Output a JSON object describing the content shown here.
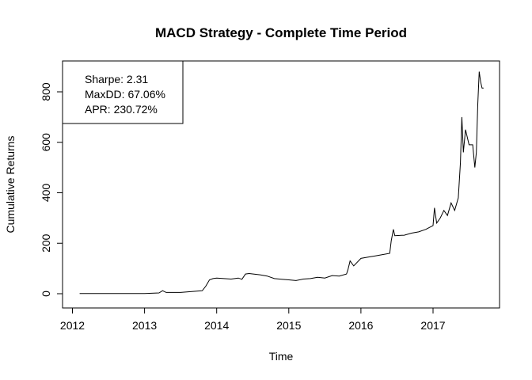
{
  "chart_data": {
    "type": "line",
    "title": "MACD Strategy - Complete Time Period",
    "xlabel": "Time",
    "ylabel": "Cumulative Returns",
    "xlim": [
      2012.1,
      2017.7
    ],
    "ylim": [
      0,
      880
    ],
    "x_ticks": [
      "2012",
      "2013",
      "2014",
      "2015",
      "2016",
      "2017"
    ],
    "y_ticks": [
      "0",
      "200",
      "400",
      "600",
      "800"
    ],
    "grid": false,
    "legend_position": "top-left",
    "stats": {
      "sharpe": "Sharpe: 2.31",
      "maxdd": "MaxDD: 67.06%",
      "apr": "APR: 230.72%"
    },
    "line_color": "#000000",
    "x": [
      2012.1,
      2012.5,
      2013.0,
      2013.2,
      2013.25,
      2013.3,
      2013.5,
      2013.8,
      2013.85,
      2013.9,
      2013.95,
      2014.0,
      2014.1,
      2014.2,
      2014.3,
      2014.35,
      2014.4,
      2014.45,
      2014.6,
      2014.7,
      2014.8,
      2014.9,
      2015.0,
      2015.1,
      2015.2,
      2015.3,
      2015.4,
      2015.5,
      2015.6,
      2015.7,
      2015.8,
      2015.82,
      2015.85,
      2015.9,
      2015.95,
      2016.0,
      2016.1,
      2016.2,
      2016.3,
      2016.4,
      2016.42,
      2016.45,
      2016.47,
      2016.6,
      2016.7,
      2016.8,
      2016.9,
      2017.0,
      2017.02,
      2017.05,
      2017.1,
      2017.15,
      2017.2,
      2017.25,
      2017.3,
      2017.35,
      2017.38,
      2017.4,
      2017.42,
      2017.45,
      2017.5,
      2017.55,
      2017.58,
      2017.6,
      2017.62,
      2017.64,
      2017.66,
      2017.68,
      2017.7
    ],
    "values": [
      1,
      1,
      1,
      3,
      12,
      5,
      5,
      12,
      30,
      55,
      60,
      62,
      60,
      58,
      62,
      57,
      78,
      80,
      75,
      70,
      60,
      57,
      55,
      52,
      58,
      60,
      65,
      62,
      72,
      70,
      78,
      95,
      130,
      110,
      125,
      140,
      145,
      150,
      155,
      160,
      210,
      255,
      230,
      232,
      240,
      245,
      255,
      270,
      340,
      280,
      300,
      330,
      310,
      360,
      330,
      380,
      520,
      700,
      560,
      650,
      590,
      590,
      500,
      560,
      750,
      880,
      840,
      815,
      815
    ]
  }
}
